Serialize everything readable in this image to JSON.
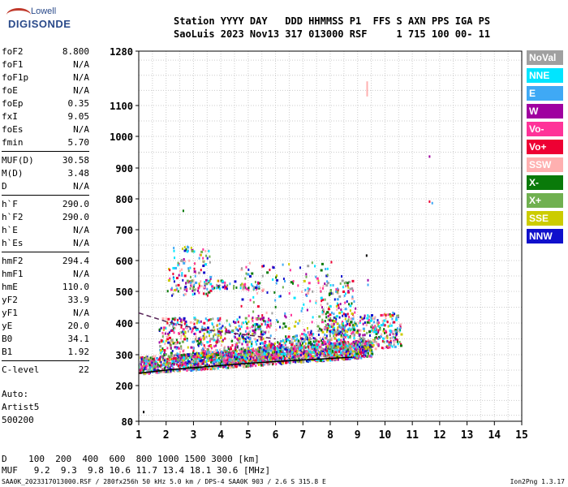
{
  "logo": {
    "line1": "Lowell",
    "line2": "DIGISONDE"
  },
  "header": {
    "labels": "Station YYYY DAY   DDD HHMMSS P1  FFS S AXN PPS IGA PS",
    "values": "SaoLuis 2023 Nov13 317 013000 RSF     1 715 100 00- 11"
  },
  "params": [
    {
      "k": "foF2",
      "v": "8.800"
    },
    {
      "k": "foF1",
      "v": "N/A"
    },
    {
      "k": "foF1p",
      "v": "N/A"
    },
    {
      "k": "foE",
      "v": "N/A"
    },
    {
      "k": "foEp",
      "v": "0.35"
    },
    {
      "k": "fxI",
      "v": "9.05"
    },
    {
      "k": "foEs",
      "v": "N/A"
    },
    {
      "k": "fmin",
      "v": "5.70"
    },
    {
      "k": "MUF(D)",
      "v": "30.58"
    },
    {
      "k": "M(D)",
      "v": "3.48"
    },
    {
      "k": "D",
      "v": "N/A"
    },
    {
      "k": "h`F",
      "v": "290.0"
    },
    {
      "k": "h`F2",
      "v": "290.0"
    },
    {
      "k": "h`E",
      "v": "N/A"
    },
    {
      "k": "h`Es",
      "v": "N/A"
    },
    {
      "k": "hmF2",
      "v": "294.4"
    },
    {
      "k": "hmF1",
      "v": "N/A"
    },
    {
      "k": "hmE",
      "v": "110.0"
    },
    {
      "k": "yF2",
      "v": "33.9"
    },
    {
      "k": "yF1",
      "v": "N/A"
    },
    {
      "k": "yE",
      "v": "20.0"
    },
    {
      "k": "B0",
      "v": "34.1"
    },
    {
      "k": "B1",
      "v": "1.92"
    },
    {
      "k": "C-level",
      "v": "22"
    }
  ],
  "auto": {
    "l1": "Auto:",
    "l2": "Artist5",
    "l3": "500200"
  },
  "legend": [
    {
      "label": "NoVal",
      "color": "#a0a0a0"
    },
    {
      "label": "NNE",
      "color": "#00e5ff"
    },
    {
      "label": "E",
      "color": "#3fa9f5"
    },
    {
      "label": "W",
      "color": "#a000a0"
    },
    {
      "label": "Vo-",
      "color": "#ff3399"
    },
    {
      "label": "Vo+",
      "color": "#ee0033"
    },
    {
      "label": "SSW",
      "color": "#ffb0b0"
    },
    {
      "label": "X-",
      "color": "#0a7a0a"
    },
    {
      "label": "X+",
      "color": "#70b050"
    },
    {
      "label": "SSE",
      "color": "#cccc00"
    },
    {
      "label": "NNW",
      "color": "#1010cc"
    }
  ],
  "dmuf": {
    "d": "D    100  200  400  600  800 1000 1500 3000 [km]",
    "muf": "MUF   9.2  9.3  9.8 10.6 11.7 13.4 18.1 30.6 [MHz]"
  },
  "footer": "SAA0K_2023317013000.RSF / 280fx256h 50 kHz 5.0 km / DPS-4 SAA0K 903 / 2.6 S 315.8 E",
  "version": "Ion2Png 1.3.17",
  "chart_data": {
    "type": "scatter",
    "xlim": [
      1,
      15
    ],
    "ylim": [
      80,
      1280
    ],
    "xticks": [
      1,
      2,
      3,
      4,
      5,
      6,
      7,
      8,
      9,
      10,
      11,
      12,
      13,
      14,
      15
    ],
    "yticks": [
      80,
      200,
      300,
      400,
      500,
      600,
      700,
      800,
      900,
      1000,
      1100,
      1280
    ],
    "grid": true,
    "colors": [
      "#00e5ff",
      "#3fa9f5",
      "#a000a0",
      "#ff3399",
      "#ee0033",
      "#ffb0b0",
      "#0a7a0a",
      "#70b050",
      "#cccc00",
      "#1010cc",
      "#a0a0a0"
    ],
    "trace_curve": [
      [
        1.0,
        240
      ],
      [
        2,
        250
      ],
      [
        3,
        258
      ],
      [
        4,
        265
      ],
      [
        5,
        272
      ],
      [
        6,
        278
      ],
      [
        7,
        283
      ],
      [
        8,
        288
      ],
      [
        8.8,
        292
      ]
    ],
    "dashed_curve": [
      [
        1.0,
        432
      ],
      [
        2,
        405
      ],
      [
        3,
        385
      ],
      [
        4,
        372
      ],
      [
        5,
        362
      ],
      [
        6,
        350
      ]
    ],
    "isolated_points": [
      {
        "x": 1.15,
        "y": 115,
        "c": "#000000"
      },
      {
        "x": 9.3,
        "y": 620,
        "c": "#000000"
      },
      {
        "x": 9.35,
        "y": 540,
        "c": "#a000a0"
      },
      {
        "x": 9.35,
        "y": 525,
        "c": "#3fa9f5"
      },
      {
        "x": 11.6,
        "y": 940,
        "c": "#a000a0"
      },
      {
        "x": 11.6,
        "y": 795,
        "c": "#ee0033"
      },
      {
        "x": 11.7,
        "y": 790,
        "c": "#3fa9f5"
      },
      {
        "x": 2.6,
        "y": 765,
        "c": "#0a7a0a"
      }
    ],
    "vertical_mark": {
      "x": 9.35,
      "y0": 1130,
      "y1": 1180,
      "c": "#ffb0b0"
    },
    "clouds": [
      {
        "x0": 1.0,
        "x1": 9.5,
        "y0": 235,
        "y1": 310,
        "n": 1800
      },
      {
        "x0": 4.0,
        "x1": 10.6,
        "y0": 275,
        "y1": 420,
        "n": 900
      },
      {
        "x0": 1.7,
        "x1": 5.8,
        "y0": 300,
        "y1": 420,
        "n": 500
      },
      {
        "x0": 2.0,
        "x1": 3.6,
        "y0": 490,
        "y1": 650,
        "n": 120
      },
      {
        "x0": 2.6,
        "x1": 5.4,
        "y0": 510,
        "y1": 540,
        "n": 90
      },
      {
        "x0": 4.5,
        "x1": 8.6,
        "y0": 320,
        "y1": 600,
        "n": 220
      },
      {
        "x0": 7.6,
        "x1": 8.9,
        "y0": 360,
        "y1": 540,
        "n": 140
      }
    ]
  }
}
